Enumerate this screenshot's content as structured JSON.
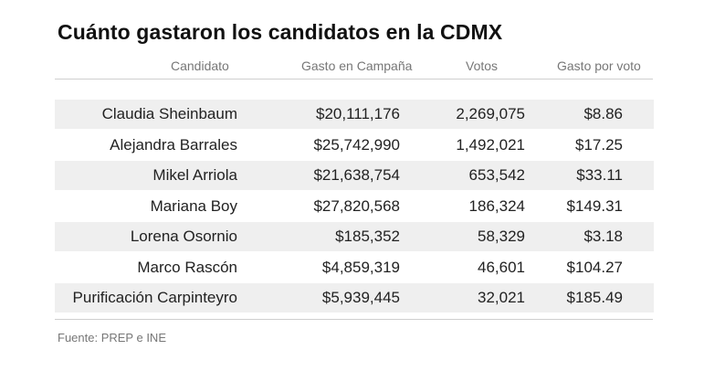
{
  "title": "Cuánto gastaron los candidatos en la CDMX",
  "columns": [
    "Candidato",
    "Gasto en Campaña",
    "Votos",
    "Gasto por voto"
  ],
  "rows": [
    {
      "candidato": "Claudia Sheinbaum",
      "gasto": "$20,111,176",
      "votos": "2,269,075",
      "gasto_por_voto": "$8.86"
    },
    {
      "candidato": "Alejandra Barrales",
      "gasto": "$25,742,990",
      "votos": "1,492,021",
      "gasto_por_voto": "$17.25"
    },
    {
      "candidato": "Mikel Arriola",
      "gasto": "$21,638,754",
      "votos": "653,542",
      "gasto_por_voto": "$33.11"
    },
    {
      "candidato": "Mariana Boy",
      "gasto": "$27,820,568",
      "votos": "186,324",
      "gasto_por_voto": "$149.31"
    },
    {
      "candidato": "Lorena Osornio",
      "gasto": "$185,352",
      "votos": "58,329",
      "gasto_por_voto": "$3.18"
    },
    {
      "candidato": "Marco Rascón",
      "gasto": "$4,859,319",
      "votos": "46,601",
      "gasto_por_voto": "$104.27"
    },
    {
      "candidato": "Purificación Carpinteyro",
      "gasto": "$5,939,445",
      "votos": "32,021",
      "gasto_por_voto": "$185.49"
    }
  ],
  "source": "Fuente: PREP e INE",
  "chart_data": {
    "type": "table",
    "title": "Cuánto gastaron los candidatos en la CDMX",
    "columns": [
      "Candidato",
      "Gasto en Campaña",
      "Votos",
      "Gasto por voto"
    ],
    "rows": [
      [
        "Claudia Sheinbaum",
        20111176,
        2269075,
        8.86
      ],
      [
        "Alejandra Barrales",
        25742990,
        1492021,
        17.25
      ],
      [
        "Mikel Arriola",
        21638754,
        653542,
        33.11
      ],
      [
        "Mariana Boy",
        27820568,
        186324,
        149.31
      ],
      [
        "Lorena Osornio",
        185352,
        58329,
        3.18
      ],
      [
        "Marco Rascón",
        4859319,
        46601,
        104.27
      ],
      [
        "Purificación Carpinteyro",
        5939445,
        32021,
        185.49
      ]
    ]
  },
  "colors": {
    "row_shade": "#efefef",
    "rule": "#cfcfcf",
    "header_text": "#777777"
  }
}
